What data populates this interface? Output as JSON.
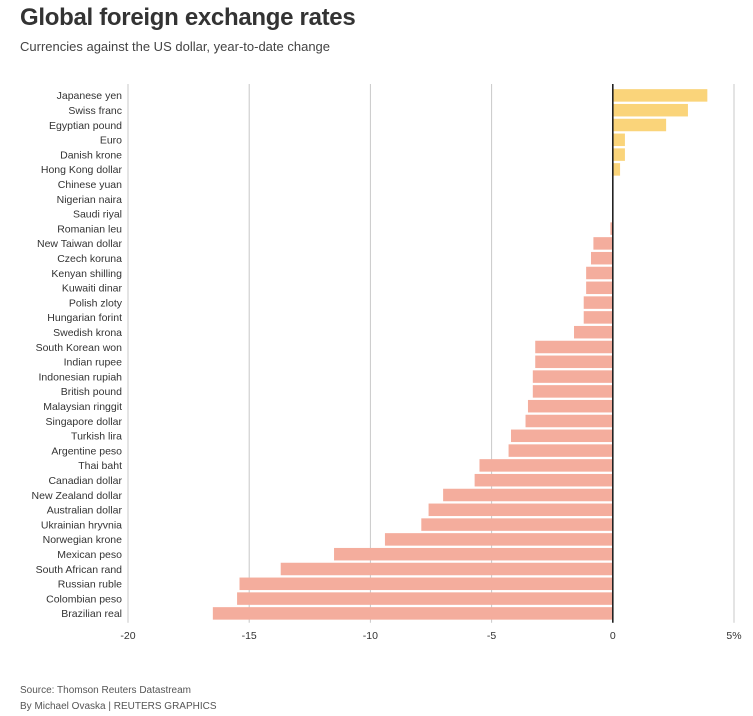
{
  "header": {
    "title": "Global foreign exchange rates",
    "subtitle": "Currencies against the US dollar, year-to-date change"
  },
  "footer": {
    "source": "Source: Thomson Reuters Datastream",
    "byline": "By Michael Ovaska | REUTERS GRAPHICS"
  },
  "colors": {
    "positive": "#FAD47A",
    "negative": "#F4AD9D",
    "gridline": "#C8C8C8",
    "zeroline": "#222222"
  },
  "chart_data": {
    "type": "bar",
    "orientation": "horizontal",
    "title": "Global foreign exchange rates",
    "subtitle": "Currencies against the US dollar, year-to-date change",
    "xlabel": "",
    "ylabel": "",
    "xlim": [
      -20,
      5
    ],
    "xticks": [
      -20,
      -15,
      -10,
      -5,
      0,
      5
    ],
    "xtick_labels": [
      "-20",
      "-15",
      "-10",
      "-5",
      "0",
      "5%"
    ],
    "grid": true,
    "categories": [
      "Japanese yen",
      "Swiss franc",
      "Egyptian pound",
      "Euro",
      "Danish krone",
      "Hong Kong dollar",
      "Chinese yuan",
      "Nigerian naira",
      "Saudi riyal",
      "Romanian leu",
      "New Taiwan dollar",
      "Czech koruna",
      "Kenyan shilling",
      "Kuwaiti dinar",
      "Polish zloty",
      "Hungarian forint",
      "Swedish krona",
      "South Korean won",
      "Indian rupee",
      "Indonesian rupiah",
      "British pound",
      "Malaysian ringgit",
      "Singapore dollar",
      "Turkish lira",
      "Argentine peso",
      "Thai baht",
      "Canadian dollar",
      "New Zealand dollar",
      "Australian dollar",
      "Ukrainian hryvnia",
      "Norwegian krone",
      "Mexican peso",
      "South African rand",
      "Russian ruble",
      "Colombian peso",
      "Brazilian real"
    ],
    "values": [
      3.9,
      3.1,
      2.2,
      0.5,
      0.5,
      0.3,
      0.0,
      0.0,
      0.0,
      -0.1,
      -0.8,
      -0.9,
      -1.1,
      -1.1,
      -1.2,
      -1.2,
      -1.6,
      -3.2,
      -3.2,
      -3.3,
      -3.3,
      -3.5,
      -3.6,
      -4.2,
      -4.3,
      -5.5,
      -5.7,
      -7.0,
      -7.6,
      -7.9,
      -9.4,
      -11.5,
      -13.7,
      -15.4,
      -15.5,
      -16.5
    ]
  }
}
